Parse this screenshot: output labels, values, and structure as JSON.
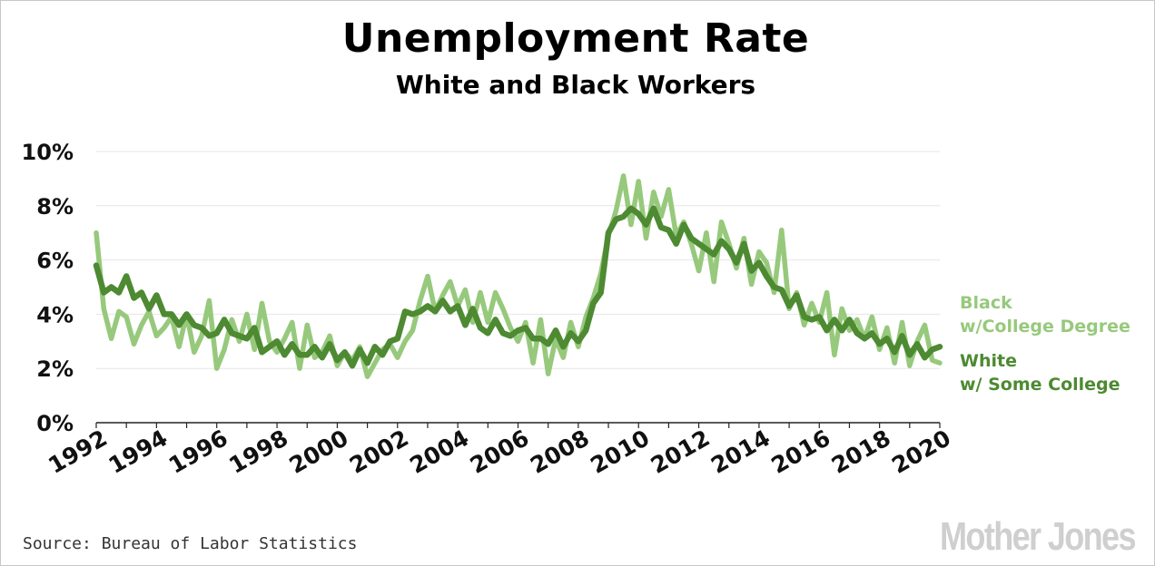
{
  "source": "Source: Bureau of Labor Statistics",
  "logo_text": "Mother Jones",
  "colors": {
    "black_series": "#97c97c",
    "white_series": "#4d8a32",
    "grid": "#e6e6e6"
  },
  "chart_data": {
    "type": "line",
    "title": "Unemployment Rate",
    "subtitle": "White and Black Workers",
    "xlabel": "",
    "ylabel": "",
    "xlim": [
      1992,
      2020
    ],
    "ylim": [
      0,
      10
    ],
    "y_ticks": [
      "0%",
      "2%",
      "4%",
      "6%",
      "8%",
      "10%"
    ],
    "x_ticks": [
      "1992",
      "1994",
      "1996",
      "1998",
      "2000",
      "2002",
      "2004",
      "2006",
      "2008",
      "2010",
      "2012",
      "2014",
      "2016",
      "2018",
      "2020"
    ],
    "grid": "horizontal",
    "legend_position": "right",
    "series": [
      {
        "name": "Black w/College Degree",
        "legend_lines": [
          "Black",
          "w/College Degree"
        ],
        "color": "#97c97c",
        "x": [
          1992.0,
          1992.25,
          1992.5,
          1992.75,
          1993.0,
          1993.25,
          1993.5,
          1993.75,
          1994.0,
          1994.25,
          1994.5,
          1994.75,
          1995.0,
          1995.25,
          1995.5,
          1995.75,
          1996.0,
          1996.25,
          1996.5,
          1996.75,
          1997.0,
          1997.25,
          1997.5,
          1997.75,
          1998.0,
          1998.25,
          1998.5,
          1998.75,
          1999.0,
          1999.25,
          1999.5,
          1999.75,
          2000.0,
          2000.25,
          2000.5,
          2000.75,
          2001.0,
          2001.25,
          2001.5,
          2001.75,
          2002.0,
          2002.25,
          2002.5,
          2002.75,
          2003.0,
          2003.25,
          2003.5,
          2003.75,
          2004.0,
          2004.25,
          2004.5,
          2004.75,
          2005.0,
          2005.25,
          2005.5,
          2005.75,
          2006.0,
          2006.25,
          2006.5,
          2006.75,
          2007.0,
          2007.25,
          2007.5,
          2007.75,
          2008.0,
          2008.25,
          2008.5,
          2008.75,
          2009.0,
          2009.25,
          2009.5,
          2009.75,
          2010.0,
          2010.25,
          2010.5,
          2010.75,
          2011.0,
          2011.25,
          2011.5,
          2011.75,
          2012.0,
          2012.25,
          2012.5,
          2012.75,
          2013.0,
          2013.25,
          2013.5,
          2013.75,
          2014.0,
          2014.25,
          2014.5,
          2014.75,
          2015.0,
          2015.25,
          2015.5,
          2015.75,
          2016.0,
          2016.25,
          2016.5,
          2016.75,
          2017.0,
          2017.25,
          2017.5,
          2017.75,
          2018.0,
          2018.25,
          2018.5,
          2018.75,
          2019.0,
          2019.25,
          2019.5,
          2019.75,
          2020.0
        ],
        "values": [
          7.0,
          4.2,
          3.1,
          4.1,
          3.9,
          2.9,
          3.6,
          4.1,
          3.2,
          3.5,
          3.9,
          2.8,
          4.0,
          2.6,
          3.2,
          4.5,
          2.0,
          2.7,
          3.8,
          3.0,
          4.0,
          2.7,
          4.4,
          3.0,
          2.6,
          3.1,
          3.7,
          2.0,
          3.6,
          2.4,
          2.6,
          3.2,
          2.1,
          2.6,
          2.3,
          2.8,
          1.7,
          2.2,
          2.7,
          2.9,
          2.4,
          3.0,
          3.4,
          4.5,
          5.4,
          4.1,
          4.7,
          5.2,
          4.3,
          4.9,
          3.7,
          4.8,
          3.7,
          4.8,
          4.2,
          3.5,
          3.0,
          3.7,
          2.2,
          3.8,
          1.8,
          3.1,
          2.4,
          3.7,
          2.8,
          3.9,
          4.6,
          5.5,
          6.9,
          7.8,
          9.1,
          7.3,
          8.9,
          6.8,
          8.5,
          7.6,
          8.6,
          6.9,
          7.4,
          6.6,
          5.6,
          7.0,
          5.2,
          7.4,
          6.6,
          5.7,
          6.8,
          5.1,
          6.3,
          5.9,
          4.8,
          7.1,
          4.2,
          4.8,
          3.6,
          4.4,
          3.7,
          4.8,
          2.5,
          4.2,
          3.4,
          3.8,
          3.1,
          3.9,
          2.7,
          3.5,
          2.2,
          3.7,
          2.1,
          3.0,
          3.6,
          2.3,
          2.2
        ]
      },
      {
        "name": "White w/ Some College",
        "legend_lines": [
          "White",
          "w/ Some College"
        ],
        "color": "#4d8a32",
        "x": [
          1992.0,
          1992.25,
          1992.5,
          1992.75,
          1993.0,
          1993.25,
          1993.5,
          1993.75,
          1994.0,
          1994.25,
          1994.5,
          1994.75,
          1995.0,
          1995.25,
          1995.5,
          1995.75,
          1996.0,
          1996.25,
          1996.5,
          1996.75,
          1997.0,
          1997.25,
          1997.5,
          1997.75,
          1998.0,
          1998.25,
          1998.5,
          1998.75,
          1999.0,
          1999.25,
          1999.5,
          1999.75,
          2000.0,
          2000.25,
          2000.5,
          2000.75,
          2001.0,
          2001.25,
          2001.5,
          2001.75,
          2002.0,
          2002.25,
          2002.5,
          2002.75,
          2003.0,
          2003.25,
          2003.5,
          2003.75,
          2004.0,
          2004.25,
          2004.5,
          2004.75,
          2005.0,
          2005.25,
          2005.5,
          2005.75,
          2006.0,
          2006.25,
          2006.5,
          2006.75,
          2007.0,
          2007.25,
          2007.5,
          2007.75,
          2008.0,
          2008.25,
          2008.5,
          2008.75,
          2009.0,
          2009.25,
          2009.5,
          2009.75,
          2010.0,
          2010.25,
          2010.5,
          2010.75,
          2011.0,
          2011.25,
          2011.5,
          2011.75,
          2012.0,
          2012.25,
          2012.5,
          2012.75,
          2013.0,
          2013.25,
          2013.5,
          2013.75,
          2014.0,
          2014.25,
          2014.5,
          2014.75,
          2015.0,
          2015.25,
          2015.5,
          2015.75,
          2016.0,
          2016.25,
          2016.5,
          2016.75,
          2017.0,
          2017.25,
          2017.5,
          2017.75,
          2018.0,
          2018.25,
          2018.5,
          2018.75,
          2019.0,
          2019.25,
          2019.5,
          2019.75,
          2020.0
        ],
        "values": [
          5.8,
          4.8,
          5.0,
          4.8,
          5.4,
          4.6,
          4.8,
          4.2,
          4.7,
          4.0,
          4.0,
          3.6,
          4.0,
          3.6,
          3.5,
          3.2,
          3.3,
          3.8,
          3.3,
          3.2,
          3.1,
          3.5,
          2.6,
          2.8,
          3.0,
          2.5,
          2.9,
          2.5,
          2.5,
          2.8,
          2.4,
          2.9,
          2.3,
          2.6,
          2.1,
          2.7,
          2.2,
          2.8,
          2.5,
          3.0,
          3.1,
          4.1,
          4.0,
          4.1,
          4.3,
          4.1,
          4.5,
          4.1,
          4.3,
          3.6,
          4.2,
          3.5,
          3.3,
          3.8,
          3.3,
          3.2,
          3.4,
          3.5,
          3.1,
          3.1,
          2.9,
          3.4,
          2.8,
          3.3,
          3.0,
          3.4,
          4.4,
          4.8,
          7.0,
          7.5,
          7.6,
          7.9,
          7.7,
          7.3,
          7.9,
          7.2,
          7.1,
          6.6,
          7.3,
          6.8,
          6.6,
          6.4,
          6.2,
          6.7,
          6.4,
          5.9,
          6.6,
          5.6,
          5.9,
          5.4,
          5.0,
          4.9,
          4.3,
          4.7,
          3.9,
          3.8,
          3.9,
          3.4,
          3.8,
          3.4,
          3.8,
          3.3,
          3.1,
          3.3,
          2.9,
          3.1,
          2.6,
          3.2,
          2.5,
          2.9,
          2.4,
          2.7,
          2.8
        ]
      }
    ]
  }
}
